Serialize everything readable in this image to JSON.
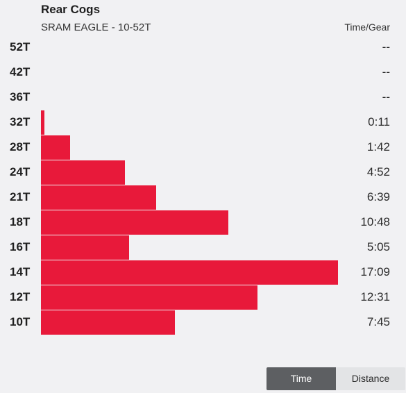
{
  "header": {
    "title": "Rear Cogs",
    "subtitle": "SRAM EAGLE - 10-52T",
    "column_header": "Time/Gear"
  },
  "chart_data": {
    "type": "bar",
    "orientation": "horizontal",
    "categories": [
      "52T",
      "42T",
      "36T",
      "32T",
      "28T",
      "24T",
      "21T",
      "18T",
      "16T",
      "14T",
      "12T",
      "10T"
    ],
    "values_seconds": [
      0,
      0,
      0,
      11,
      102,
      292,
      399,
      648,
      305,
      1029,
      751,
      465
    ],
    "value_labels": [
      "--",
      "--",
      "--",
      "0:11",
      "1:42",
      "4:52",
      "6:39",
      "10:48",
      "5:05",
      "17:09",
      "12:31",
      "7:45"
    ],
    "bar_color": "#e8193a"
  },
  "toggle": {
    "time_label": "Time",
    "distance_label": "Distance",
    "selected": "Time"
  },
  "colors": {
    "background": "#f1f1f3",
    "accent": "#e8193a",
    "toggle_active": "#5d5f62",
    "toggle_inactive": "#e3e4e6"
  }
}
